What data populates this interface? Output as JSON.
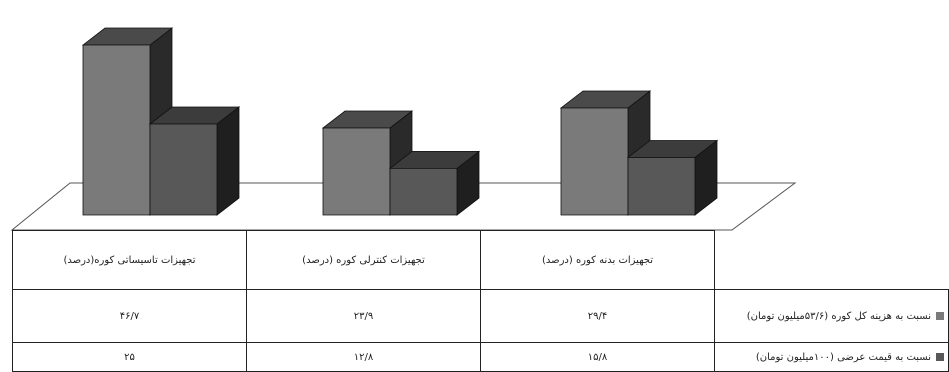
{
  "chart_data": {
    "type": "bar",
    "categories": [
      "تجهیزات تاسیساتی کوره(درصد)",
      "تجهیزات کنترلی کوره (درصد)",
      "تجهیزات بدنه کوره (درصد)"
    ],
    "value_labels": [
      [
        "۴۶/۷",
        "۲۳/۹",
        "۲۹/۴"
      ],
      [
        "۲۵",
        "۱۲/۸",
        "۱۵/۸"
      ]
    ],
    "series": [
      {
        "name": "نسبت به هزینه کل کوره (۵۳/۶میلیون تومان)",
        "values": [
          46.7,
          23.9,
          29.4
        ],
        "color": "#7a7a7a"
      },
      {
        "name": "نسبت به قیمت عرضی (۱۰۰میلیون تومان)",
        "values": [
          25,
          12.8,
          15.8
        ],
        "color": "#585858"
      }
    ],
    "ylim": [
      0,
      50
    ],
    "grid": false,
    "legend": "table-right"
  }
}
